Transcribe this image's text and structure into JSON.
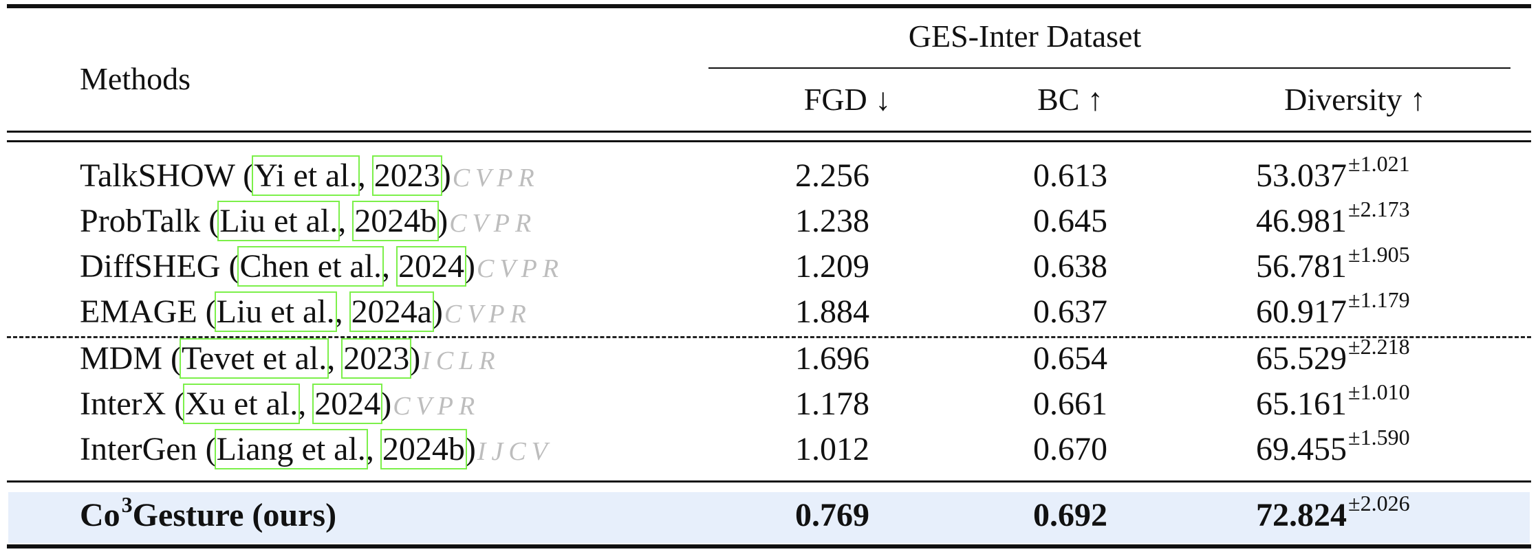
{
  "header": {
    "methods_label": "Methods",
    "dataset_label": "GES-Inter Dataset",
    "col_fgd": "FGD ↓",
    "col_bc": "BC ↑",
    "col_diversity": "Diversity ↑"
  },
  "rows": [
    {
      "name": "TalkSHOW (",
      "author": "Yi et al.",
      "sep": ", ",
      "year": "2023",
      "close": ")",
      "venue": "CVPR",
      "fgd": "2.256",
      "bc": "0.613",
      "div": "53.037",
      "div_sd": "±1.021"
    },
    {
      "name": "ProbTalk (",
      "author": "Liu et al.",
      "sep": ", ",
      "year": "2024b",
      "close": ")",
      "venue": "CVPR",
      "fgd": "1.238",
      "bc": "0.645",
      "div": "46.981",
      "div_sd": "±2.173"
    },
    {
      "name": "DiffSHEG (",
      "author": "Chen et al.",
      "sep": ", ",
      "year": "2024",
      "close": ")",
      "venue": "CVPR",
      "fgd": "1.209",
      "bc": "0.638",
      "div": "56.781",
      "div_sd": "±1.905"
    },
    {
      "name": "EMAGE (",
      "author": "Liu et al.",
      "sep": ", ",
      "year": "2024a",
      "close": ")",
      "venue": "CVPR",
      "fgd": "1.884",
      "bc": "0.637",
      "div": "60.917",
      "div_sd": "±1.179"
    },
    {
      "name": "MDM (",
      "author": "Tevet et al.",
      "sep": ", ",
      "year": "2023",
      "close": ")",
      "venue": "ICLR",
      "fgd": "1.696",
      "bc": "0.654",
      "div": "65.529",
      "div_sd": "±2.218"
    },
    {
      "name": "InterX (",
      "author": "Xu et al.",
      "sep": ", ",
      "year": "2024",
      "close": ")",
      "venue": "CVPR",
      "fgd": "1.178",
      "bc": "0.661",
      "div": "65.161",
      "div_sd": "±1.010"
    },
    {
      "name": "InterGen (",
      "author": "Liang et al.",
      "sep": ", ",
      "year": "2024b",
      "close": ")",
      "venue": "IJCV",
      "fgd": "1.012",
      "bc": "0.670",
      "div": "69.455",
      "div_sd": "±1.590"
    }
  ],
  "ours": {
    "name_prefix": "Co",
    "name_sup": "3",
    "name_suffix": "Gesture (ours)",
    "fgd": "0.769",
    "bc": "0.692",
    "div": "72.824",
    "div_sd": "±2.026"
  }
}
